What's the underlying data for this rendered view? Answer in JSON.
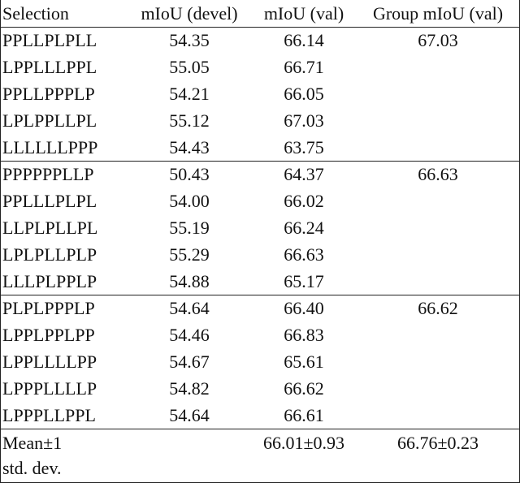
{
  "header": [
    "Selection",
    "mIoU (devel)",
    "mIoU (val)",
    "Group mIoU (val)"
  ],
  "groups": [
    {
      "rows": [
        [
          "PPLLPLPLL",
          "54.35",
          "66.14"
        ],
        [
          "LPPLLLPPL",
          "55.05",
          "66.71"
        ],
        [
          "PPLLPPPLP",
          "54.21",
          "66.05"
        ],
        [
          "LPLPPLLPL",
          "55.12",
          "67.03"
        ],
        [
          "LLLLLLPPP",
          "54.43",
          "63.75"
        ]
      ],
      "group_miou": "67.03"
    },
    {
      "rows": [
        [
          "PPPPPPLLP",
          "50.43",
          "64.37"
        ],
        [
          "PPLLLPLPL",
          "54.00",
          "66.02"
        ],
        [
          "LLPLPLLPL",
          "55.19",
          "66.24"
        ],
        [
          "LPLPLLPLP",
          "55.29",
          "66.63"
        ],
        [
          "LLLPLPPLP",
          "54.88",
          "65.17"
        ]
      ],
      "group_miou": "66.63"
    },
    {
      "rows": [
        [
          "PLPLPPPLP",
          "54.64",
          "66.40"
        ],
        [
          "LPPLPPLPP",
          "54.46",
          "66.83"
        ],
        [
          "LPPLLLLPP",
          "54.67",
          "65.61"
        ],
        [
          "LPPPLLLLP",
          "54.82",
          "66.62"
        ],
        [
          "LPPPLLPPL",
          "54.64",
          "66.61"
        ]
      ],
      "group_miou": "66.62"
    }
  ],
  "footer": {
    "label_lines": [
      "Mean±1",
      "std. dev."
    ],
    "val": "66.01±0.93",
    "group": "66.76±0.23"
  }
}
